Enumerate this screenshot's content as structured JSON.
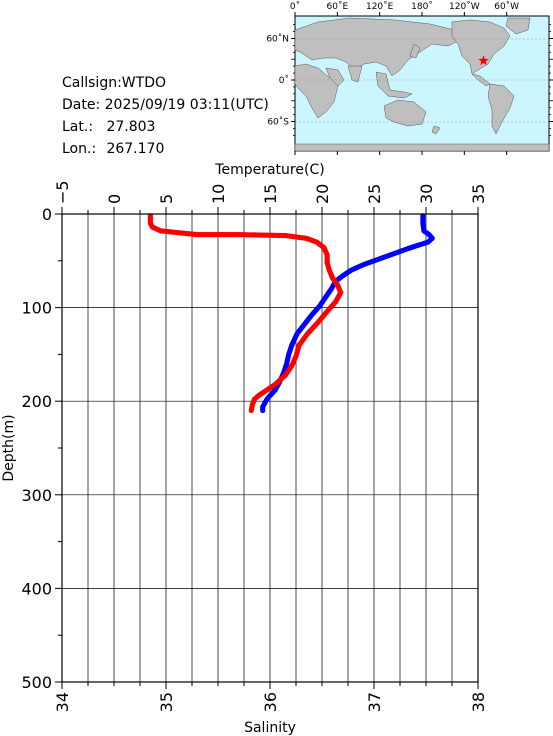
{
  "info": {
    "callsign": "Callsign:WTDO",
    "date_label": "Date:",
    "date_value": "2025/09/19 03:11(UTC)",
    "lat_label": "Lat.:",
    "lat_value": "27.803",
    "lon_label": "Lon.:",
    "lon_value": "267.170"
  },
  "map": {
    "lon_ticks": [
      "0˚",
      "60˚E",
      "120˚E",
      "180˚",
      "120˚W",
      "60˚W"
    ],
    "lat_ticks": [
      "60˚N",
      "0˚",
      "60˚S"
    ],
    "ocean_color": "#ccf6ff",
    "land_color": "#bfbfbf",
    "marker_color": "#ff0000",
    "marker_lat": 27.803,
    "marker_lon": 267.17
  },
  "chart_data": {
    "type": "line",
    "top_axis": {
      "label": "Temperature(C)",
      "range": [
        -5,
        35
      ],
      "tick_labels": [
        "−5",
        "0",
        "5",
        "10",
        "15",
        "20",
        "25",
        "30",
        "35"
      ]
    },
    "bottom_axis": {
      "label": "Salinity",
      "range": [
        34,
        38
      ],
      "tick_labels": [
        "34",
        "35",
        "36",
        "37",
        "38"
      ]
    },
    "y_axis": {
      "label": "Depth(m)",
      "range": [
        0,
        500
      ],
      "inverted": true,
      "tick_labels": [
        "0",
        "100",
        "200",
        "300",
        "400",
        "500"
      ]
    },
    "grid": true,
    "series": [
      {
        "variable": "temperature",
        "color": "#0000ff",
        "x": [
          29.7,
          29.7,
          29.8,
          30.3,
          30.6,
          30.2,
          28.5,
          27.0,
          25.5,
          24.0,
          22.8,
          22.0,
          21.3,
          20.9,
          20.4,
          19.8,
          19.0,
          18.3,
          17.6,
          17.1,
          16.8,
          16.6,
          16.3,
          15.9,
          15.5,
          15.0,
          14.7,
          14.5,
          14.3,
          14.3
        ],
        "depth": [
          2,
          10,
          18,
          22,
          26,
          30,
          36,
          42,
          48,
          54,
          60,
          66,
          72,
          80,
          88,
          98,
          108,
          118,
          128,
          140,
          150,
          160,
          170,
          180,
          188,
          194,
          198,
          202,
          206,
          210
        ]
      },
      {
        "variable": "salinity",
        "color": "#ff0000",
        "x": [
          34.85,
          34.85,
          34.87,
          34.95,
          35.3,
          35.7,
          36.15,
          36.35,
          36.45,
          36.52,
          36.55,
          36.55,
          36.57,
          36.6,
          36.65,
          36.68,
          36.63,
          36.55,
          36.46,
          36.36,
          36.28,
          36.25,
          36.21,
          36.15,
          36.05,
          35.97,
          35.89,
          35.85,
          35.83,
          35.82
        ],
        "depth": [
          2,
          10,
          14,
          18,
          22,
          22,
          23,
          26,
          30,
          36,
          44,
          52,
          60,
          68,
          76,
          84,
          94,
          104,
          116,
          128,
          140,
          152,
          162,
          172,
          182,
          188,
          194,
          198,
          204,
          210
        ]
      }
    ]
  }
}
